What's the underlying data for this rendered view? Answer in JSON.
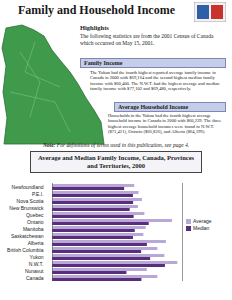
{
  "header": {
    "title": "Family and Household Income"
  },
  "highlights": {
    "heading": "Highlights",
    "text": "The following statistics are from the 2001 Census of Canada which occurred on May 15, 2001."
  },
  "sections": [
    {
      "heading": "Family Income",
      "text": "The Yukon had the fourth highest reported average family income in Canada in 2000 with $69,164 and the second highest median family income with $60,400. The N.W.T. had the highest average and median family income with $77,102 and $69,480, respectively."
    },
    {
      "heading": "Average Household Income",
      "text": "Households in the Yukon had the fourth highest average household income in Canada in 2000 with $60,239. The three highest average household incomes were found in N.W.T. ($71,421), Ontario ($66,836), and Alberta ($64,199)."
    }
  ],
  "note": {
    "label": "Note:",
    "text": "For definitions of terms used in this publication, see page 4."
  },
  "chart_data": {
    "type": "bar",
    "orientation": "horizontal",
    "title": "Average and Median Family Income, Canada, Provinces and Territories, 2000",
    "categories": [
      "Newfoundland",
      "P.E.I.",
      "Nova Scotia",
      "New Brunswick",
      "Quebec",
      "Ontario",
      "Manitoba",
      "Saskatchewan",
      "Alberta",
      "British Columbia",
      "Yukon",
      "N.W.T.",
      "Nunavut",
      "Canada"
    ],
    "series": [
      {
        "name": "Average",
        "color": "#b8a8d8",
        "values": [
          50580,
          53240,
          55330,
          52850,
          56850,
          73850,
          57610,
          56220,
          70110,
          64820,
          69164,
          77102,
          58330,
          64816
        ]
      },
      {
        "name": "Median",
        "color": "#5a2d7c",
        "values": [
          44400,
          49800,
          49900,
          47800,
          50240,
          59500,
          50910,
          49820,
          58400,
          54840,
          60400,
          69480,
          45800,
          55016
        ]
      }
    ],
    "xlim": [
      0,
      80000
    ],
    "tick_labels": "y",
    "legend": "right"
  }
}
